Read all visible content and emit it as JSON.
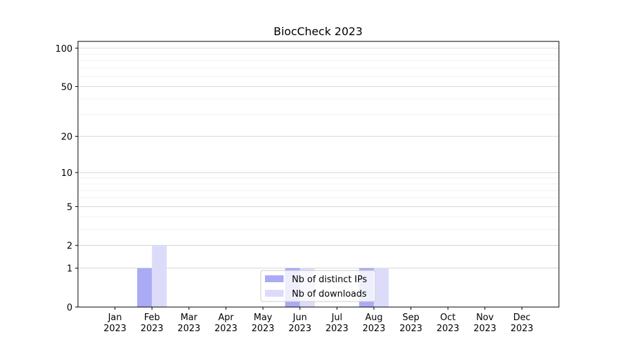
{
  "chart_data": {
    "type": "bar",
    "title": "BiocCheck 2023",
    "categories": [
      "Jan\n2023",
      "Feb\n2023",
      "Mar\n2023",
      "Apr\n2023",
      "May\n2023",
      "Jun\n2023",
      "Jul\n2023",
      "Aug\n2023",
      "Sep\n2023",
      "Oct\n2023",
      "Nov\n2023",
      "Dec\n2023"
    ],
    "series": [
      {
        "name": "Nb of distinct IPs",
        "color": "#aaaaf5",
        "values": [
          0,
          1,
          0,
          0,
          0,
          1,
          0,
          1,
          0,
          0,
          0,
          0
        ]
      },
      {
        "name": "Nb of downloads",
        "color": "#dcdcfa",
        "values": [
          0,
          2,
          0,
          0,
          0,
          1,
          0,
          1,
          0,
          0,
          0,
          0
        ]
      }
    ],
    "yscale": "log1p",
    "ylim": [
      0,
      113
    ],
    "yticks": [
      0,
      1,
      2,
      5,
      10,
      20,
      50,
      100
    ],
    "yminorticks": [
      3,
      4,
      6,
      7,
      8,
      9,
      30,
      40,
      60,
      70,
      80,
      90
    ],
    "grid": true,
    "legend": "lower center"
  }
}
